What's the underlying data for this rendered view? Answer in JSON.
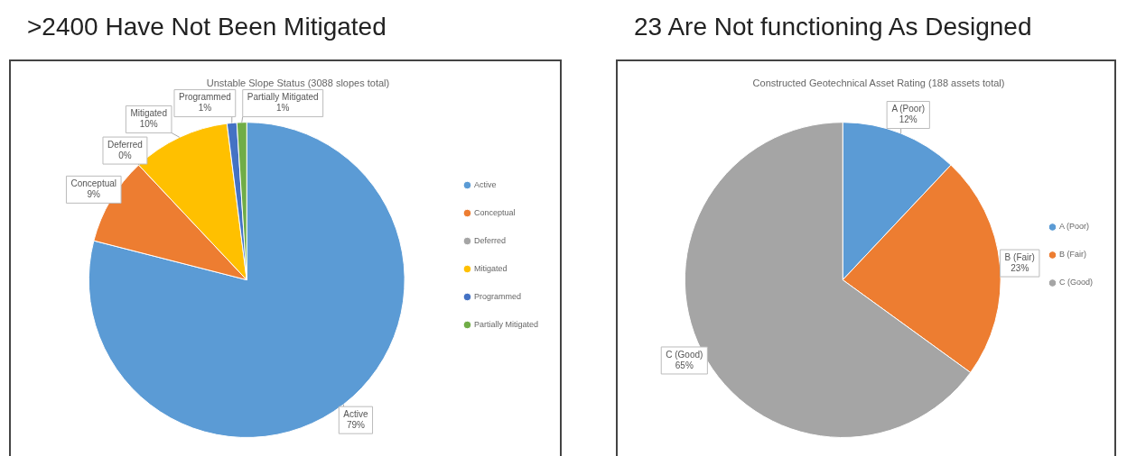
{
  "chart_data": [
    {
      "type": "pie",
      "title": ">2400 Have Not Been Mitigated",
      "subtitle": "Unstable Slope Status (3088 slopes total)",
      "categories": [
        "Active",
        "Conceptual",
        "Deferred",
        "Mitigated",
        "Programmed",
        "Partially Mitigated"
      ],
      "values": [
        79,
        9,
        0,
        10,
        1,
        1
      ],
      "value_labels": [
        "79%",
        "9%",
        "0%",
        "10%",
        "1%",
        "1%"
      ],
      "colors": [
        "#5b9bd5",
        "#ed7d31",
        "#a5a5a5",
        "#ffc000",
        "#4472c4",
        "#70ad47"
      ],
      "legend": "right"
    },
    {
      "type": "pie",
      "title": "23 Are Not functioning As Designed",
      "subtitle": "Constructed Geotechnical Asset Rating (188 assets total)",
      "categories": [
        "A (Poor)",
        "B (Fair)",
        "C (Good)"
      ],
      "values": [
        12,
        23,
        65
      ],
      "value_labels": [
        "12%",
        "23%",
        "65%"
      ],
      "colors": [
        "#5b9bd5",
        "#ed7d31",
        "#a5a5a5"
      ],
      "legend": "right"
    }
  ]
}
